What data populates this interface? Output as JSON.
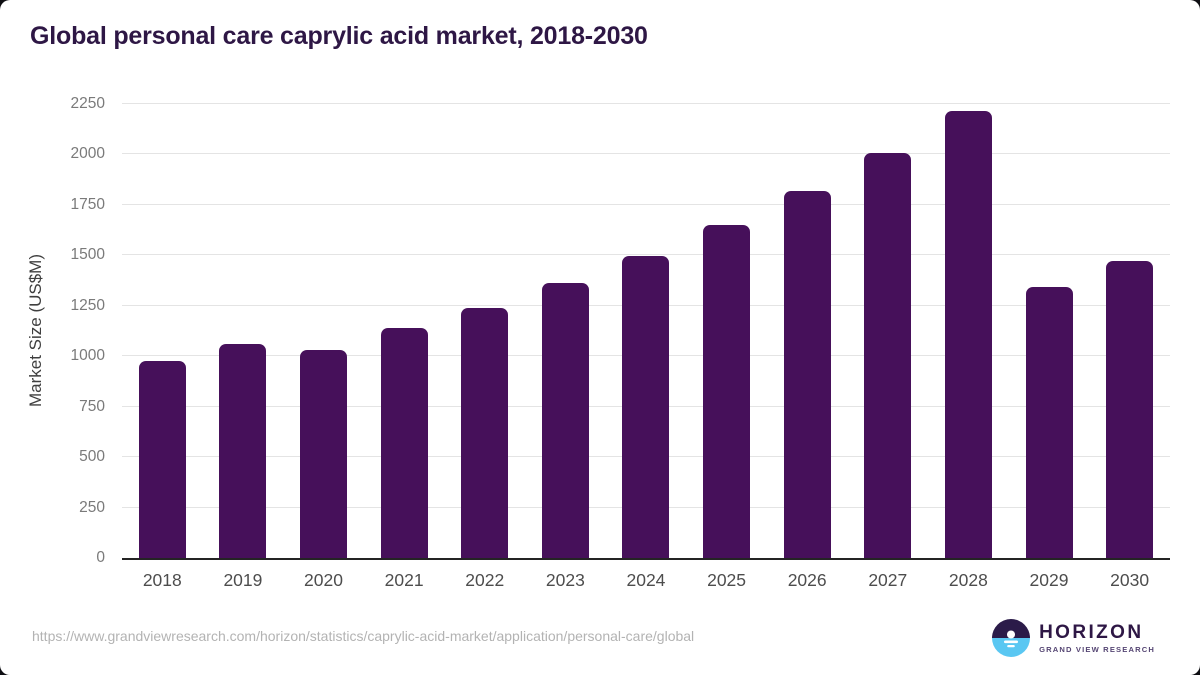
{
  "header": {
    "title": "Global personal care caprylic acid market, 2018-2030"
  },
  "chart_data": {
    "type": "bar",
    "title": "Global personal care caprylic acid market, 2018-2030",
    "categories": [
      "2018",
      "2019",
      "2020",
      "2021",
      "2022",
      "2023",
      "2024",
      "2025",
      "2026",
      "2027",
      "2028",
      "2029",
      "2030"
    ],
    "values": [
      978,
      1059,
      1033,
      1139,
      1238,
      1361,
      1495,
      1648,
      1818,
      2006,
      2214,
      1342,
      1471
    ],
    "xlabel": "",
    "ylabel": "Market Size (US$M)",
    "ylim": [
      0,
      2250
    ],
    "yticks": [
      0,
      250,
      500,
      750,
      1000,
      1250,
      1500,
      1750,
      2000,
      2250
    ],
    "grid": "horizontal-only",
    "legend": "none",
    "bar_color": "#46105a"
  },
  "footer": {
    "source_url": "https://www.grandviewresearch.com/horizon/statistics/caprylic-acid-market/application/personal-care/global",
    "logo": {
      "brand": "HORIZON",
      "sub_brand": "GRAND VIEW RESEARCH",
      "icon": "horizon-sunset-icon",
      "icon_top_color": "#2b1b49",
      "icon_bottom_color": "#5ac7f2"
    }
  },
  "colors": {
    "title": "#2e1745",
    "bar": "#46105a",
    "gridline": "#e4e4e4",
    "axis_line": "#242424",
    "y_tick_label": "#7a7a7a",
    "x_label": "#4d4d4d",
    "y_axis_label": "#3f3f3f",
    "source_url": "#b3b3b3",
    "background": "#ffffff"
  }
}
